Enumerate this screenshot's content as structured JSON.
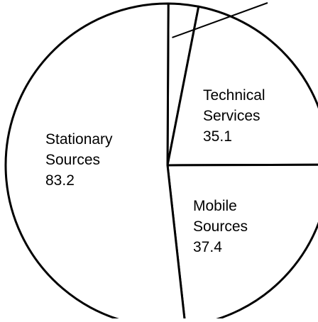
{
  "chart_data": {
    "type": "pie",
    "title": "",
    "slices": [
      {
        "name": "",
        "lines": [],
        "value": 4.8
      },
      {
        "name": "Technical Services",
        "lines": [
          "Technical",
          "Services",
          "35.1"
        ],
        "value": 35.1
      },
      {
        "name": "Mobile Sources",
        "lines": [
          "Mobile",
          "Sources",
          "37.4"
        ],
        "value": 37.4
      },
      {
        "name": "Stationary Sources",
        "lines": [
          "Stationary",
          "Sources",
          "83.2"
        ],
        "value": 83.2
      }
    ],
    "colors": {
      "fill": "#ffffff",
      "stroke": "#000000"
    }
  }
}
